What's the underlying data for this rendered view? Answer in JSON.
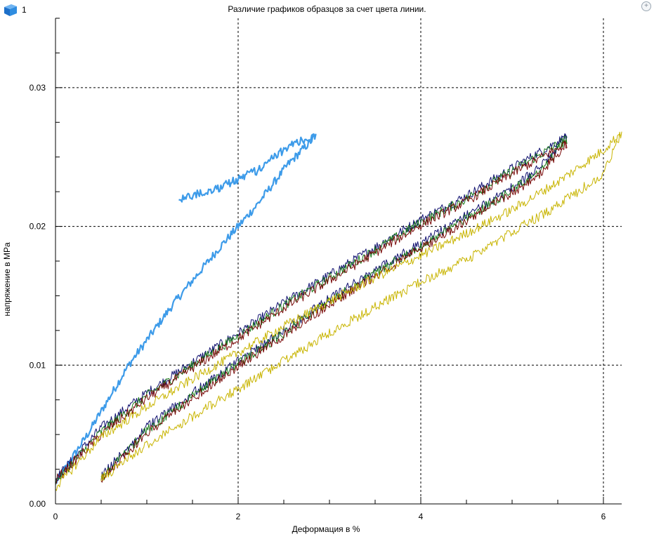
{
  "header": {
    "badge_number": "1"
  },
  "icons": {
    "badge": "blue-cube-icon",
    "zoom": "zoom-in-icon"
  },
  "chart_data": {
    "type": "line",
    "title": "Различие графиков образцов за счет цвета линии.",
    "xlabel": "Деформация в %",
    "ylabel": "напряжение в MPa",
    "xlim": [
      0,
      6.2
    ],
    "ylim": [
      0,
      0.035
    ],
    "xticks": [
      0,
      2,
      4,
      6
    ],
    "xtick_labels": [
      "0",
      "2",
      "4",
      "6"
    ],
    "yticks": [
      0,
      0.01,
      0.02,
      0.03
    ],
    "ytick_labels": [
      "0.00",
      "0.01",
      "0.02",
      "0.03"
    ],
    "grid": true,
    "legend": "none",
    "series": [
      {
        "color": "#3d9be9",
        "width": 2.2,
        "noise": 0.0006,
        "x": [
          0,
          0.35,
          0.8,
          1.3,
          1.8,
          2.2,
          2.55,
          2.85,
          2.6,
          2.2,
          1.8,
          1.35
        ],
        "y": [
          0.0015,
          0.005,
          0.01,
          0.0145,
          0.0185,
          0.0215,
          0.0245,
          0.0265,
          0.026,
          0.024,
          0.0228,
          0.022
        ]
      },
      {
        "color": "#101070",
        "width": 1,
        "noise": 0.0007,
        "x": [
          0,
          0.5,
          1,
          1.5,
          2,
          2.5,
          3,
          3.5,
          4,
          4.5,
          5,
          5.6,
          5.3,
          5,
          4.5,
          4,
          3.5,
          3,
          2.5,
          2,
          1.5,
          1,
          0.5
        ],
        "y": [
          0.0018,
          0.0055,
          0.008,
          0.0102,
          0.0123,
          0.0145,
          0.0165,
          0.0185,
          0.0205,
          0.0222,
          0.0242,
          0.0265,
          0.0242,
          0.0228,
          0.0208,
          0.0188,
          0.0168,
          0.0148,
          0.0125,
          0.0103,
          0.008,
          0.0055,
          0.002
        ]
      },
      {
        "color": "#1a7a1a",
        "width": 1,
        "noise": 0.0007,
        "x": [
          0,
          0.5,
          1,
          1.5,
          2,
          2.5,
          3,
          3.5,
          4,
          4.5,
          5,
          5.6,
          5.3,
          5,
          4.5,
          4,
          3.5,
          3,
          2.5,
          2,
          1.5,
          1,
          0.5
        ],
        "y": [
          0.0016,
          0.0052,
          0.0078,
          0.01,
          0.0121,
          0.0143,
          0.0163,
          0.0183,
          0.0203,
          0.022,
          0.024,
          0.0263,
          0.024,
          0.0226,
          0.0206,
          0.0186,
          0.0166,
          0.0146,
          0.0123,
          0.0101,
          0.0078,
          0.0053,
          0.0018
        ]
      },
      {
        "color": "#7a0a0a",
        "width": 1,
        "noise": 0.0007,
        "x": [
          0,
          0.5,
          1,
          1.5,
          2,
          2.5,
          3,
          3.5,
          4,
          4.5,
          5,
          5.6,
          5.3,
          5,
          4.5,
          4,
          3.5,
          3,
          2.5,
          2,
          1.5,
          1,
          0.5
        ],
        "y": [
          0.0017,
          0.005,
          0.0076,
          0.0098,
          0.0119,
          0.0141,
          0.0161,
          0.0181,
          0.0201,
          0.0218,
          0.0238,
          0.026,
          0.0238,
          0.0224,
          0.0204,
          0.0184,
          0.0164,
          0.0144,
          0.0121,
          0.0099,
          0.0076,
          0.0051,
          0.0017
        ]
      },
      {
        "color": "#c8b400",
        "width": 1,
        "noise": 0.0007,
        "x": [
          0,
          0.5,
          1,
          1.5,
          2,
          2.5,
          3,
          3.5,
          4,
          4.5,
          5,
          5.5,
          6,
          6.2,
          6,
          5.5,
          5,
          4.5,
          4,
          3.5,
          3,
          2.5,
          2,
          1.5,
          1,
          0.5
        ],
        "y": [
          0.0012,
          0.0048,
          0.007,
          0.009,
          0.0109,
          0.0128,
          0.0146,
          0.0163,
          0.0179,
          0.0195,
          0.0212,
          0.0232,
          0.0255,
          0.0268,
          0.0238,
          0.0215,
          0.0196,
          0.0176,
          0.016,
          0.0142,
          0.0123,
          0.0103,
          0.0083,
          0.0063,
          0.0043,
          0.0018
        ]
      }
    ]
  }
}
